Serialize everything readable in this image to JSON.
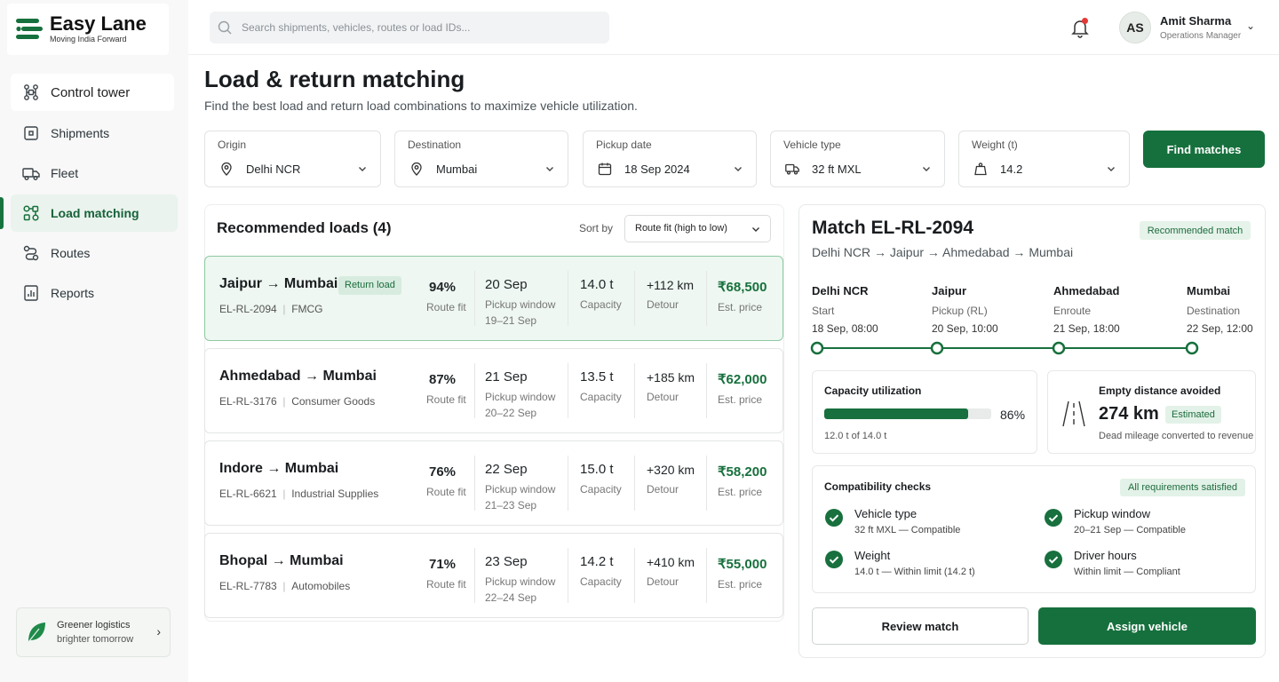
{
  "brand": {
    "name": "Easy Lane",
    "tagline": "Moving India Forward"
  },
  "sidebar": {
    "items": [
      {
        "label": "Control tower",
        "icon": "network-icon"
      },
      {
        "label": "Shipments",
        "icon": "box-icon"
      },
      {
        "label": "Fleet",
        "icon": "truck-icon"
      },
      {
        "label": "Load matching",
        "icon": "matching-icon",
        "active": true
      },
      {
        "label": "Routes",
        "icon": "route-icon"
      },
      {
        "label": "Reports",
        "icon": "report-icon"
      }
    ],
    "promo": {
      "line1": "Greener logistics",
      "line2": "brighter tomorrow"
    }
  },
  "header": {
    "search_placeholder": "Search shipments, vehicles, routes or load IDs...",
    "user": {
      "initials": "AS",
      "name": "Amit Sharma",
      "role": "Operations Manager"
    }
  },
  "page": {
    "title": "Load & return matching",
    "subtitle": "Find the best load and return load combinations to maximize vehicle utilization."
  },
  "filters": {
    "origin": {
      "label": "Origin",
      "value": "Delhi NCR"
    },
    "destination": {
      "label": "Destination",
      "value": "Mumbai"
    },
    "pickup_date": {
      "label": "Pickup date",
      "value": "18 Sep 2024"
    },
    "vehicle_type": {
      "label": "Vehicle type",
      "value": "32 ft MXL"
    },
    "weight": {
      "label": "Weight (t)",
      "value": "14.2"
    },
    "find_label": "Find matches"
  },
  "loads": {
    "title": "Recommended loads (4)",
    "sort_label": "Sort by",
    "sort_value": "Route fit (high to low)",
    "items": [
      {
        "route": "Jaipur → Mumbai",
        "badge": "Return load",
        "id": "EL-RL-2094",
        "category": "FMCG",
        "fit": "94%",
        "fit_label": "Route fit",
        "date": "20 Sep",
        "window_label": "Pickup window",
        "window": "19–21 Sep",
        "capacity": "14.0 t",
        "capacity_label": "Capacity",
        "detour": "+112 km",
        "detour_label": "Detour",
        "price": "₹68,500",
        "price_label": "Est. price"
      },
      {
        "route": "Ahmedabad → Mumbai",
        "id": "EL-RL-3176",
        "category": "Consumer Goods",
        "fit": "87%",
        "fit_label": "Route fit",
        "date": "21 Sep",
        "window_label": "Pickup window",
        "window": "20–22 Sep",
        "capacity": "13.5 t",
        "capacity_label": "Capacity",
        "detour": "+185 km",
        "detour_label": "Detour",
        "price": "₹62,000",
        "price_label": "Est. price"
      },
      {
        "route": "Indore → Mumbai",
        "id": "EL-RL-6621",
        "category": "Industrial Supplies",
        "fit": "76%",
        "fit_label": "Route fit",
        "date": "22 Sep",
        "window_label": "Pickup window",
        "window": "21–23 Sep",
        "capacity": "15.0 t",
        "capacity_label": "Capacity",
        "detour": "+320 km",
        "detour_label": "Detour",
        "price": "₹58,200",
        "price_label": "Est. price"
      },
      {
        "route": "Bhopal → Mumbai",
        "id": "EL-RL-7783",
        "category": "Automobiles",
        "fit": "71%",
        "fit_label": "Route fit",
        "date": "23 Sep",
        "window_label": "Pickup window",
        "window": "22–24 Sep",
        "capacity": "14.2 t",
        "capacity_label": "Capacity",
        "detour": "+410 km",
        "detour_label": "Detour",
        "price": "₹55,000",
        "price_label": "Est. price"
      }
    ]
  },
  "match": {
    "title": "Match EL-RL-2094",
    "badge": "Recommended match",
    "route": "Delhi NCR → Jaipur → Ahmedabad → Mumbai",
    "stops": [
      {
        "name": "Delhi NCR",
        "role": "Start",
        "time": "18 Sep, 08:00"
      },
      {
        "name": "Jaipur",
        "role": "Pickup (RL)",
        "time": "20 Sep, 10:00"
      },
      {
        "name": "Ahmedabad",
        "role": "Enroute",
        "time": "21 Sep, 18:00"
      },
      {
        "name": "Mumbai",
        "role": "Destination",
        "time": "22 Sep, 12:00"
      }
    ],
    "capacity": {
      "title": "Capacity utilization",
      "percent": "86%",
      "fraction": 0.86,
      "detail": "12.0 t of 14.0 t"
    },
    "empty_distance": {
      "title": "Empty distance avoided",
      "value": "274 km",
      "badge": "Estimated",
      "detail": "Dead mileage converted to revenue"
    },
    "compat": {
      "title": "Compatibility checks",
      "badge": "All requirements satisfied",
      "checks": [
        {
          "label": "Vehicle type",
          "value": "32 ft MXL — Compatible"
        },
        {
          "label": "Pickup window",
          "value": "20–21 Sep — Compatible"
        },
        {
          "label": "Weight",
          "value": "14.0 t — Within limit (14.2 t)"
        },
        {
          "label": "Driver hours",
          "value": "Within limit — Compliant"
        }
      ]
    },
    "review_label": "Review match",
    "assign_label": "Assign vehicle"
  },
  "colors": {
    "brand_green": "#16703d",
    "active_bg": "#eaf3ed",
    "alert_red": "#e53935"
  }
}
